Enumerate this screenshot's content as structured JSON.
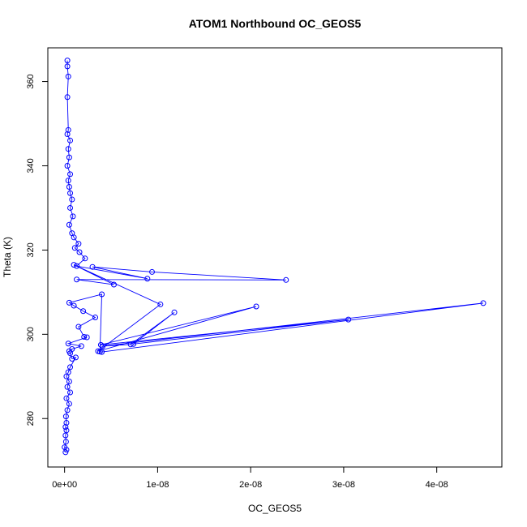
{
  "chart_data": {
    "type": "line",
    "title": "ATOM1 Northbound OC_GEOS5",
    "xlabel": "OC_GEOS5",
    "ylabel": "Theta (K)",
    "xlim": [
      -1.8e-09,
      4.7e-08
    ],
    "ylim": [
      268.5,
      368.0
    ],
    "x_ticks": [
      0,
      1e-08,
      2e-08,
      3e-08,
      4e-08
    ],
    "x_tick_labels": [
      "0e+00",
      "1e-08",
      "2e-08",
      "3e-08",
      "4e-08"
    ],
    "y_ticks": [
      280,
      300,
      320,
      340,
      360
    ],
    "y_tick_labels": [
      "280",
      "300",
      "320",
      "340",
      "360"
    ],
    "grid": false,
    "legend": "none",
    "marker": "open-circle",
    "color": "#0000ff",
    "series": [
      {
        "points": [
          [
            1e-10,
            272.0
          ],
          [
            2e-10,
            272.6
          ],
          [
            0.0,
            273.2
          ],
          [
            1.5e-10,
            274.5
          ],
          [
            1e-10,
            276.0
          ],
          [
            2e-10,
            277.2
          ],
          [
            1e-10,
            278.0
          ],
          [
            2e-10,
            279.0
          ],
          [
            1.5e-10,
            280.5
          ],
          [
            3e-10,
            282.0
          ],
          [
            5e-10,
            283.5
          ],
          [
            2e-10,
            284.8
          ],
          [
            6e-10,
            286.2
          ],
          [
            3e-10,
            287.5
          ],
          [
            5e-10,
            288.8
          ],
          [
            2e-10,
            290.0
          ],
          [
            4e-10,
            291.0
          ],
          [
            6e-10,
            292.2
          ],
          [
            1.2e-09,
            294.5
          ],
          [
            8e-10,
            294.2
          ],
          [
            6e-10,
            295.5
          ],
          [
            5e-10,
            296.0
          ],
          [
            8e-10,
            296.5
          ],
          [
            1.8e-09,
            297.2
          ],
          [
            4e-10,
            297.8
          ],
          [
            2.4e-09,
            299.3
          ],
          [
            2.1e-09,
            299.4
          ],
          [
            1.5e-09,
            301.8
          ],
          [
            3.3e-09,
            304.0
          ],
          [
            2e-09,
            305.5
          ],
          [
            1e-09,
            306.8
          ],
          [
            5e-10,
            307.5
          ],
          [
            4e-09,
            309.5
          ],
          [
            3.8e-09,
            295.9
          ],
          [
            4e-09,
            295.8
          ],
          [
            4.5e-08,
            307.4
          ],
          [
            4.1e-09,
            297.2
          ],
          [
            7.1e-09,
            297.6
          ],
          [
            1.18e-08,
            305.2
          ],
          [
            7.4e-09,
            297.7
          ],
          [
            3.05e-08,
            303.5
          ],
          [
            3.9e-09,
            297.5
          ],
          [
            2.06e-08,
            306.6
          ],
          [
            3.6e-09,
            296.0
          ],
          [
            1.03e-08,
            307.1
          ],
          [
            1e-09,
            316.5
          ],
          [
            5.3e-09,
            311.8
          ],
          [
            1.3e-09,
            313.0
          ],
          [
            2.38e-08,
            312.9
          ],
          [
            9.4e-09,
            314.8
          ],
          [
            3e-09,
            316.0
          ],
          [
            8.9e-09,
            313.2
          ],
          [
            1.3e-09,
            316.2
          ],
          [
            2.2e-09,
            318.0
          ],
          [
            1.6e-09,
            319.5
          ],
          [
            1.1e-09,
            320.5
          ],
          [
            1.5e-09,
            321.5
          ],
          [
            1e-09,
            323.0
          ],
          [
            8e-10,
            324.0
          ],
          [
            5e-10,
            326.0
          ],
          [
            9e-10,
            328.0
          ],
          [
            6e-10,
            330.0
          ],
          [
            8e-10,
            332.0
          ],
          [
            6e-10,
            333.5
          ],
          [
            5e-10,
            335.0
          ],
          [
            4e-10,
            336.5
          ],
          [
            6e-10,
            338.0
          ],
          [
            3e-10,
            340.0
          ],
          [
            5e-10,
            342.0
          ],
          [
            4e-10,
            344.0
          ],
          [
            6e-10,
            346.0
          ],
          [
            3e-10,
            347.5
          ],
          [
            4e-10,
            348.5
          ],
          [
            3e-10,
            356.3
          ],
          [
            4e-10,
            361.2
          ],
          [
            3e-10,
            363.6
          ],
          [
            3e-10,
            365.0
          ]
        ]
      }
    ]
  }
}
